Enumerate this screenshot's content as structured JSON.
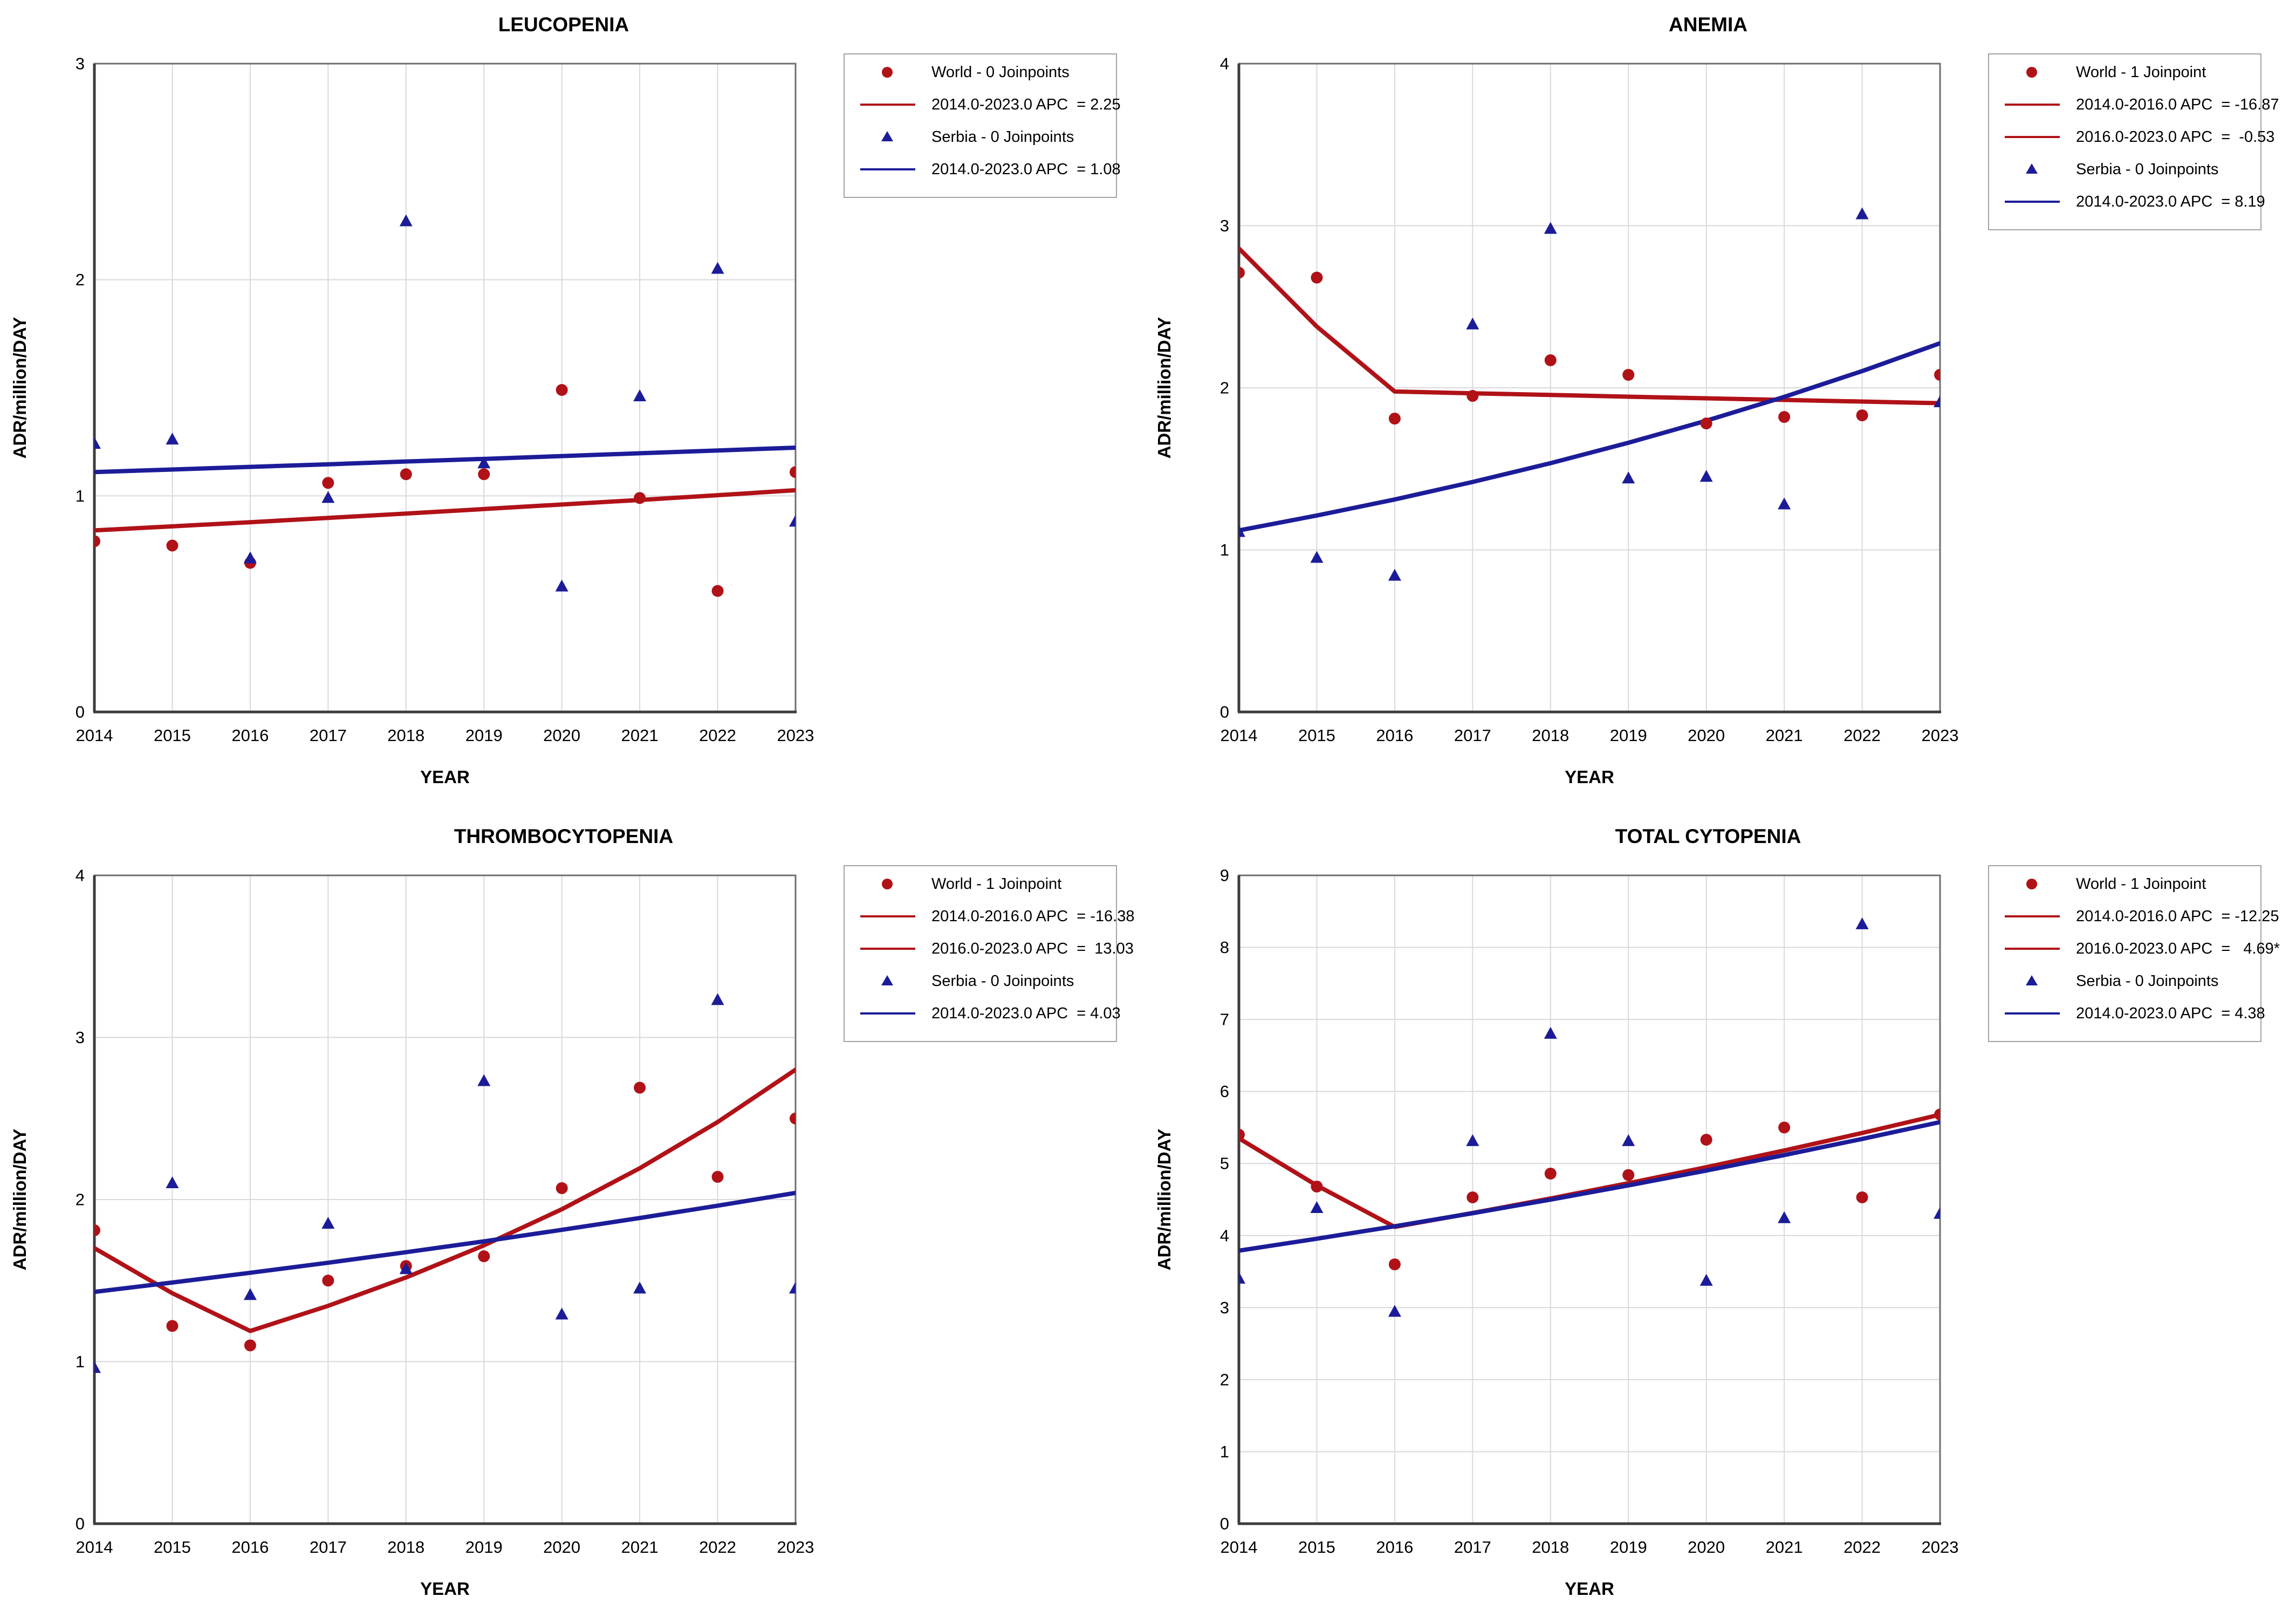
{
  "figure_title": "",
  "colors": {
    "world": "#B01218",
    "serbia": "#1C1C99",
    "grid": "#D9D9D9",
    "border": "#6E6E6E",
    "axis": "#3C3C3C",
    "legend_border": "#A3A3A3",
    "text": "#000000",
    "background": "#FFFFFF"
  },
  "chart_data": [
    {
      "type": "scatter",
      "title": "LEUCOPENIA",
      "xlabel": "YEAR",
      "ylabel": "ADR/million/DAY",
      "x": [
        2014,
        2015,
        2016,
        2017,
        2018,
        2019,
        2020,
        2021,
        2022,
        2023
      ],
      "ylim": [
        0,
        3
      ],
      "yticks": [
        0,
        1,
        2,
        3
      ],
      "grid": true,
      "legend_position": "right-top",
      "series": [
        {
          "name": "World",
          "marker": "circle",
          "color_key": "world",
          "values": [
            0.79,
            0.77,
            0.69,
            1.06,
            1.1,
            1.1,
            1.49,
            0.99,
            0.56,
            1.11
          ],
          "trend": [
            0.84,
            0.859,
            0.878,
            0.898,
            0.918,
            0.939,
            0.96,
            0.981,
            1.003,
            1.026
          ],
          "apc_segments": [
            {
              "range": "2014.0-2023.0",
              "apc": 2.25
            }
          ]
        },
        {
          "name": "Serbia",
          "marker": "triangle",
          "color_key": "serbia",
          "values": [
            1.24,
            1.26,
            0.71,
            0.99,
            2.27,
            1.15,
            0.58,
            1.46,
            2.05,
            0.88
          ],
          "trend": [
            1.11,
            1.122,
            1.134,
            1.146,
            1.159,
            1.171,
            1.184,
            1.197,
            1.21,
            1.223
          ],
          "apc_segments": [
            {
              "range": "2014.0-2023.0",
              "apc": 1.08
            }
          ]
        }
      ],
      "legend": {
        "rows": [
          {
            "shape": "circle",
            "color_key": "world",
            "label": "World - 0 Joinpoints"
          },
          {
            "shape": "line",
            "color_key": "world",
            "label": "2014.0-2023.0 APC  = 2.25"
          },
          {
            "shape": "triangle",
            "color_key": "serbia",
            "label": "Serbia - 0 Joinpoints"
          },
          {
            "shape": "line",
            "color_key": "serbia",
            "label": "2014.0-2023.0 APC  = 1.08"
          }
        ]
      }
    },
    {
      "type": "scatter",
      "title": "ANEMIA",
      "xlabel": "YEAR",
      "ylabel": "ADR/million/DAY",
      "x": [
        2014,
        2015,
        2016,
        2017,
        2018,
        2019,
        2020,
        2021,
        2022,
        2023
      ],
      "ylim": [
        0,
        4
      ],
      "yticks": [
        0,
        1,
        2,
        3,
        4
      ],
      "grid": true,
      "legend_position": "right-top",
      "series": [
        {
          "name": "World",
          "marker": "circle",
          "color_key": "world",
          "values": [
            2.71,
            2.68,
            1.81,
            1.95,
            2.17,
            2.08,
            1.78,
            1.82,
            1.83,
            2.08
          ],
          "trend": [
            2.86,
            2.378,
            1.977,
            1.966,
            1.956,
            1.945,
            1.935,
            1.925,
            1.915,
            1.905
          ],
          "apc_segments": [
            {
              "range": "2014.0-2016.0",
              "apc": -16.87
            },
            {
              "range": "2016.0-2023.0",
              "apc": -0.53
            }
          ]
        },
        {
          "name": "Serbia",
          "marker": "triangle",
          "color_key": "serbia",
          "values": [
            1.11,
            0.95,
            0.84,
            2.39,
            2.98,
            1.44,
            1.45,
            1.28,
            3.07,
            1.91
          ],
          "trend": [
            1.12,
            1.212,
            1.311,
            1.419,
            1.535,
            1.661,
            1.797,
            1.944,
            2.103,
            2.275
          ],
          "apc_segments": [
            {
              "range": "2014.0-2023.0",
              "apc": 8.19
            }
          ]
        }
      ],
      "legend": {
        "rows": [
          {
            "shape": "circle",
            "color_key": "world",
            "label": "World - 1 Joinpoint"
          },
          {
            "shape": "line",
            "color_key": "world",
            "label": "2014.0-2016.0 APC  = -16.87"
          },
          {
            "shape": "line",
            "color_key": "world",
            "label": "2016.0-2023.0 APC  =  -0.53"
          },
          {
            "shape": "triangle",
            "color_key": "serbia",
            "label": "Serbia - 0 Joinpoints"
          },
          {
            "shape": "line",
            "color_key": "serbia",
            "label": "2014.0-2023.0 APC  = 8.19"
          }
        ]
      }
    },
    {
      "type": "scatter",
      "title": "THROMBOCYTOPENIA",
      "xlabel": "YEAR",
      "ylabel": "ADR/million/DAY",
      "x": [
        2014,
        2015,
        2016,
        2017,
        2018,
        2019,
        2020,
        2021,
        2022,
        2023
      ],
      "ylim": [
        0,
        4
      ],
      "yticks": [
        0,
        1,
        2,
        3,
        4
      ],
      "grid": true,
      "legend_position": "right-top",
      "series": [
        {
          "name": "World",
          "marker": "circle",
          "color_key": "world",
          "values": [
            1.81,
            1.22,
            1.1,
            1.5,
            1.59,
            1.65,
            2.07,
            2.69,
            2.14,
            2.5
          ],
          "trend": [
            1.7,
            1.422,
            1.189,
            1.344,
            1.519,
            1.717,
            1.94,
            2.193,
            2.478,
            2.801
          ],
          "apc_segments": [
            {
              "range": "2014.0-2016.0",
              "apc": -16.38
            },
            {
              "range": "2016.0-2023.0",
              "apc": 13.03
            }
          ]
        },
        {
          "name": "Serbia",
          "marker": "triangle",
          "color_key": "serbia",
          "values": [
            0.96,
            2.1,
            1.41,
            1.85,
            1.57,
            2.73,
            1.29,
            1.45,
            3.23,
            1.45
          ],
          "trend": [
            1.43,
            1.488,
            1.548,
            1.61,
            1.675,
            1.742,
            1.813,
            1.886,
            1.962,
            2.041
          ],
          "apc_segments": [
            {
              "range": "2014.0-2023.0",
              "apc": 4.03
            }
          ]
        }
      ],
      "legend": {
        "rows": [
          {
            "shape": "circle",
            "color_key": "world",
            "label": "World - 1 Joinpoint"
          },
          {
            "shape": "line",
            "color_key": "world",
            "label": "2014.0-2016.0 APC  = -16.38"
          },
          {
            "shape": "line",
            "color_key": "world",
            "label": "2016.0-2023.0 APC  =  13.03"
          },
          {
            "shape": "triangle",
            "color_key": "serbia",
            "label": "Serbia - 0 Joinpoints"
          },
          {
            "shape": "line",
            "color_key": "serbia",
            "label": "2014.0-2023.0 APC  = 4.03"
          }
        ]
      }
    },
    {
      "type": "scatter",
      "title": "TOTAL CYTOPENIA",
      "xlabel": "YEAR",
      "ylabel": "ADR/million/DAY",
      "x": [
        2014,
        2015,
        2016,
        2017,
        2018,
        2019,
        2020,
        2021,
        2022,
        2023
      ],
      "ylim": [
        0,
        9
      ],
      "yticks": [
        0,
        1,
        2,
        3,
        4,
        5,
        6,
        7,
        8,
        9
      ],
      "grid": true,
      "legend_position": "right-top",
      "series": [
        {
          "name": "World",
          "marker": "circle",
          "color_key": "world",
          "values": [
            5.4,
            4.68,
            3.6,
            4.53,
            4.86,
            4.84,
            5.33,
            5.5,
            4.53,
            5.68
          ],
          "trend": [
            5.35,
            4.695,
            4.12,
            4.313,
            4.515,
            4.727,
            4.949,
            5.181,
            5.424,
            5.678
          ],
          "apc_segments": [
            {
              "range": "2014.0-2016.0",
              "apc": -12.25
            },
            {
              "range": "2016.0-2023.0",
              "apc": 4.69,
              "significant": true
            }
          ]
        },
        {
          "name": "Serbia",
          "marker": "triangle",
          "color_key": "serbia",
          "values": [
            3.4,
            4.38,
            2.94,
            5.31,
            6.8,
            5.31,
            3.37,
            4.24,
            8.32,
            4.3
          ],
          "trend": [
            3.79,
            3.956,
            4.129,
            4.31,
            4.499,
            4.696,
            4.902,
            5.117,
            5.341,
            5.575
          ],
          "apc_segments": [
            {
              "range": "2014.0-2023.0",
              "apc": 4.38
            }
          ]
        }
      ],
      "legend": {
        "rows": [
          {
            "shape": "circle",
            "color_key": "world",
            "label": "World - 1 Joinpoint"
          },
          {
            "shape": "line",
            "color_key": "world",
            "label": "2014.0-2016.0 APC  = -12.25"
          },
          {
            "shape": "line",
            "color_key": "world",
            "label": "2016.0-2023.0 APC  =   4.69*"
          },
          {
            "shape": "triangle",
            "color_key": "serbia",
            "label": "Serbia - 0 Joinpoints"
          },
          {
            "shape": "line",
            "color_key": "serbia",
            "label": "2014.0-2023.0 APC  = 4.38"
          }
        ]
      }
    }
  ]
}
